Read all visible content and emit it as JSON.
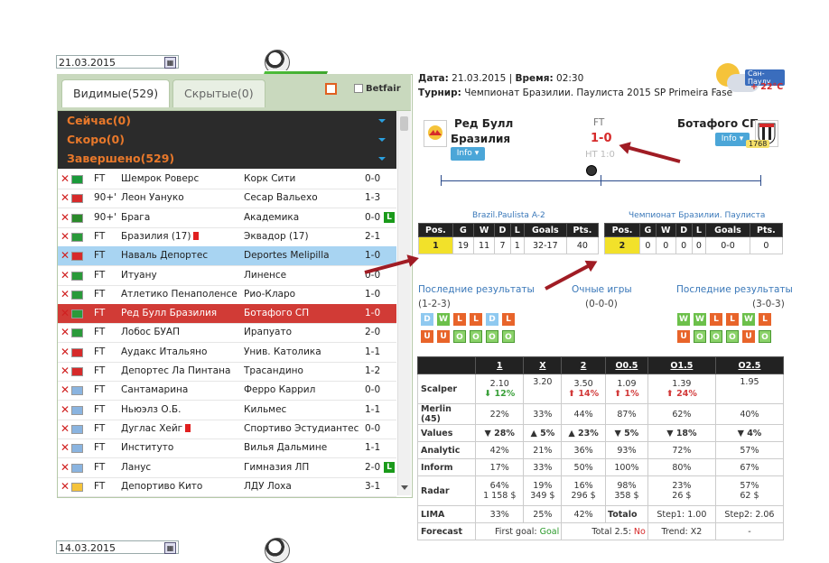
{
  "date_filter": {
    "value": "21.03.2015",
    "value2": "14.03.2015"
  },
  "tabs": [
    {
      "label": "Видимые(529)"
    },
    {
      "label": "Скрытые(0)"
    }
  ],
  "betfair_label": "Betfair",
  "groups": [
    {
      "label": "Сейчас(0)"
    },
    {
      "label": "Скоро(0)"
    },
    {
      "label": "Завершено(529)"
    }
  ],
  "matches": [
    {
      "status": "FT",
      "home": "Шемрок Роверс",
      "away": "Корк Сити",
      "score": "0-0"
    },
    {
      "status": "90+'",
      "home": "Леон Уануко",
      "away": "Сесар Вальехо",
      "score": "1-3"
    },
    {
      "status": "90+'",
      "home": "Брага",
      "away": "Академика",
      "score": "0-0"
    },
    {
      "status": "FT",
      "home": "Бразилия (17)",
      "away": "Эквадор (17)",
      "score": "2-1"
    },
    {
      "status": "FT",
      "home": "Наваль Депортес",
      "away": "Deportes Melipilla",
      "score": "1-0"
    },
    {
      "status": "FT",
      "home": "Итуану",
      "away": "Линенсе",
      "score": "0-0"
    },
    {
      "status": "FT",
      "home": "Атлетико Пенаполенсе",
      "away": "Рио-Кларо",
      "score": "1-0"
    },
    {
      "status": "FT",
      "home": "Ред Булл Бразилия",
      "away": "Ботафого СП",
      "score": "1-0"
    },
    {
      "status": "FT",
      "home": "Лобос БУАП",
      "away": "Ирапуато",
      "score": "2-0"
    },
    {
      "status": "FT",
      "home": "Аудакс Итальяно",
      "away": "Унив. Католика",
      "score": "1-1"
    },
    {
      "status": "FT",
      "home": "Депортес Ла Пинтана",
      "away": "Трасандино",
      "score": "1-2"
    },
    {
      "status": "FT",
      "home": "Сантамарина",
      "away": "Ферро Каррил",
      "score": "0-0"
    },
    {
      "status": "FT",
      "home": "Ньюэлз О.Б.",
      "away": "Кильмес",
      "score": "1-1"
    },
    {
      "status": "FT",
      "home": "Дуглас Хейг",
      "away": "Спортиво Эстудиантес",
      "score": "0-0"
    },
    {
      "status": "FT",
      "home": "Институто",
      "away": "Вилья Дальмине",
      "score": "1-1"
    },
    {
      "status": "FT",
      "home": "Ланус",
      "away": "Гимназия ЛП",
      "score": "2-0"
    },
    {
      "status": "FT",
      "home": "Депортиво Кито",
      "away": "ЛДУ Лоха",
      "score": "3-1"
    }
  ],
  "l_badge": "L",
  "header": {
    "date_label": "Дата:",
    "date": "21.03.2015",
    "time_label": "Время:",
    "time": "02:30",
    "tournament_label": "Турнир:",
    "tournament": "Чемпионат Бразилии. Паулиста 2015 SP Primeira Fase"
  },
  "weather": {
    "city": "Сан-Паулу",
    "temp": "+ 22°C"
  },
  "match": {
    "home_line1": "Ред Булл",
    "home_line2": "Бразилия",
    "away": "Ботафого СП",
    "status": "FT",
    "score": "1-0",
    "ht": "HT 1:0",
    "info": "Info",
    "away_rank": "1768"
  },
  "league_home": {
    "title": "Brazil.Paulista A-2",
    "headers": [
      "Pos.",
      "G",
      "W",
      "D",
      "L",
      "Goals",
      "Pts."
    ],
    "row": [
      "1",
      "19",
      "11",
      "7",
      "1",
      "32-17",
      "40"
    ]
  },
  "league_away": {
    "title": "Чемпионат Бразилии. Паулиста",
    "headers": [
      "Pos.",
      "G",
      "W",
      "D",
      "L",
      "Goals",
      "Pts."
    ],
    "row": [
      "2",
      "0",
      "0",
      "0",
      "0",
      "0-0",
      "0"
    ]
  },
  "results": {
    "last_home": "Последние результаты",
    "last_home_sub": "(1-2-3)",
    "h2h": "Очные игры",
    "h2h_sub": "(0-0-0)",
    "last_away": "Последние результаты",
    "last_away_sub": "(3-0-3)",
    "home_form": [
      "D",
      "W",
      "L",
      "L",
      "D",
      "L"
    ],
    "home_ou": [
      "U",
      "U",
      "O",
      "O",
      "O",
      "O"
    ],
    "away_form": [
      "W",
      "W",
      "L",
      "L",
      "W",
      "L"
    ],
    "away_ou": [
      "U",
      "O",
      "O",
      "O",
      "U",
      "O"
    ]
  },
  "stats": {
    "headers": [
      "",
      "1",
      "X",
      "2",
      "O0.5",
      "O1.5",
      "O2.5"
    ],
    "scalper": {
      "label": "Scalper",
      "v": [
        "2.10",
        "3.20",
        "3.50",
        "1.09",
        "1.39",
        "1.95"
      ],
      "d": [
        "12%",
        "",
        "14%",
        "1%",
        "24%",
        ""
      ]
    },
    "merlin": {
      "label": "Merlin (45)",
      "v": [
        "22%",
        "33%",
        "44%",
        "87%",
        "62%",
        "40%"
      ]
    },
    "values": {
      "label": "Values",
      "v": [
        "28%",
        "5%",
        "23%",
        "5%",
        "18%",
        "4%"
      ]
    },
    "analytic": {
      "label": "Analytic",
      "v": [
        "42%",
        "21%",
        "36%",
        "93%",
        "72%",
        "57%"
      ]
    },
    "inform": {
      "label": "Inform",
      "v": [
        "17%",
        "33%",
        "50%",
        "100%",
        "80%",
        "67%"
      ]
    },
    "radar": {
      "label": "Radar",
      "v": [
        "64%",
        "19%",
        "16%",
        "98%",
        "23%",
        "57%"
      ],
      "m": [
        "1 158 $",
        "349 $",
        "296 $",
        "358 $",
        "26 $",
        "62 $"
      ]
    },
    "lima": {
      "label": "LIMA",
      "v": [
        "33%",
        "25%",
        "42%"
      ],
      "totalo": "Totalo",
      "step1": "Step1: 1.00",
      "step2": "Step2: 2.06"
    },
    "forecast": {
      "label": "Forecast",
      "first": "First goal:",
      "first_val": "Goal",
      "total": "Total 2.5:",
      "total_val": "No",
      "trend": "Trend: X2",
      "last": "-"
    }
  }
}
